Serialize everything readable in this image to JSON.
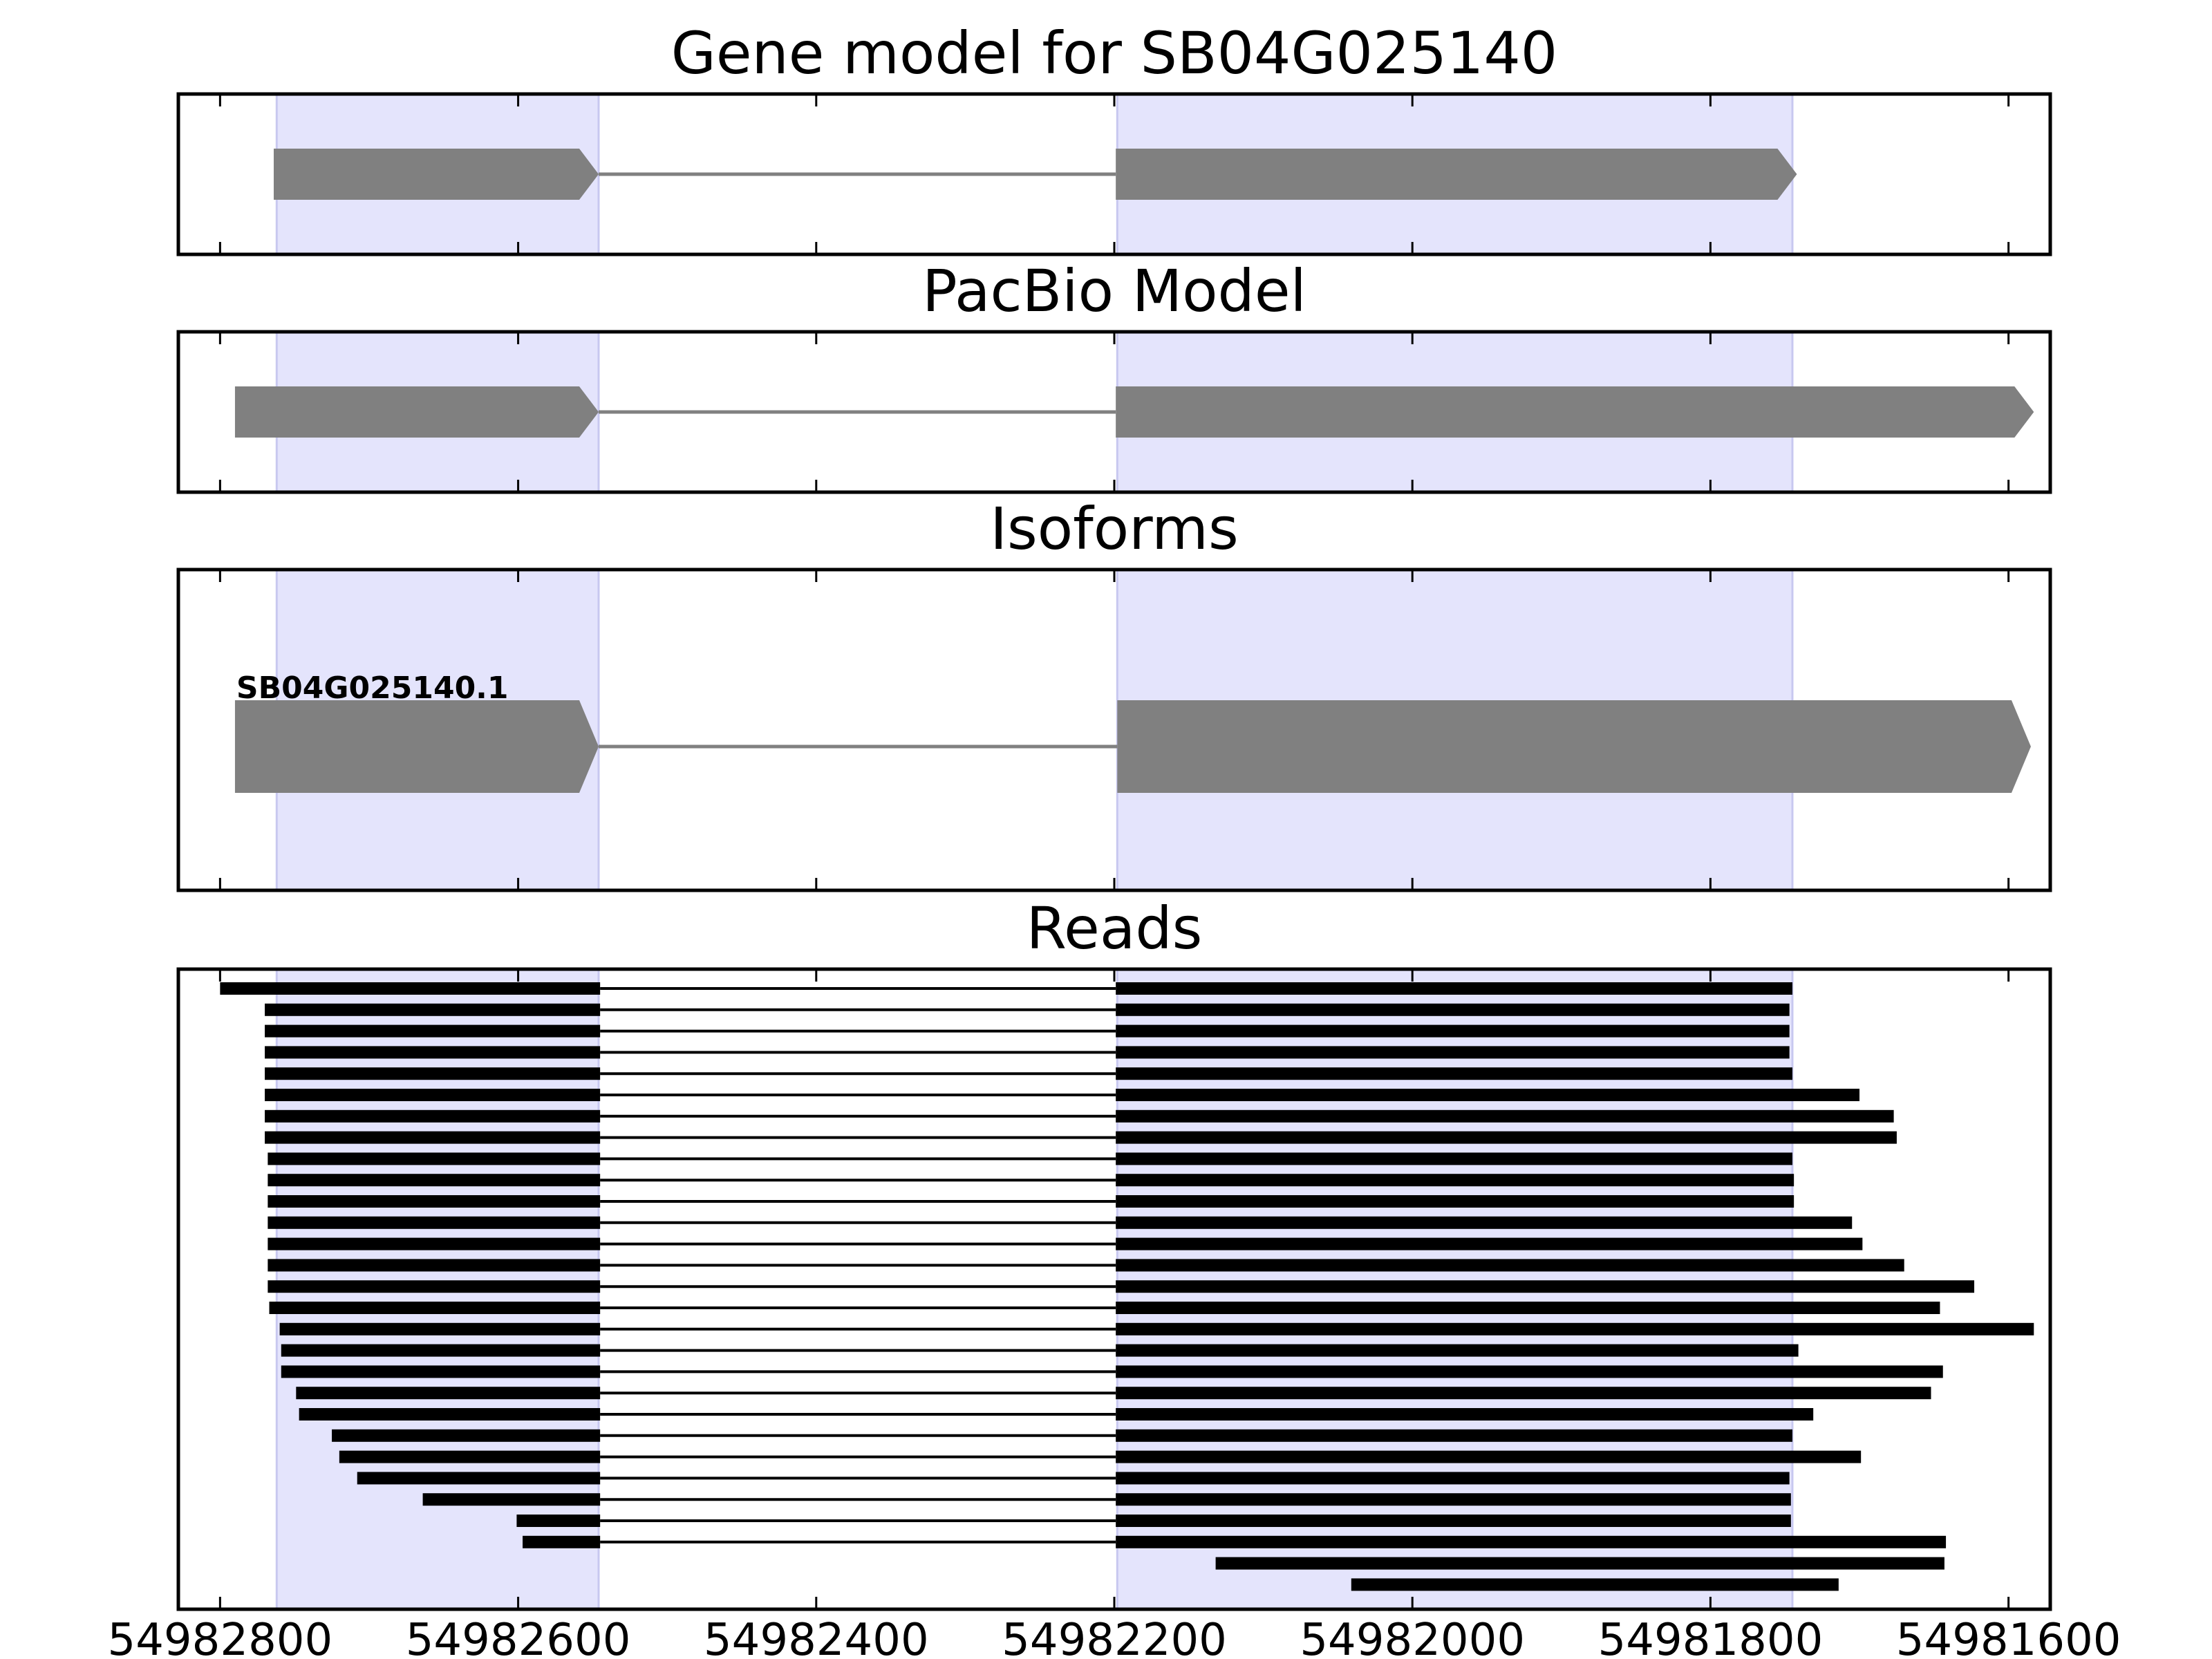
{
  "chart_data": {
    "type": "gene-track",
    "x_axis": {
      "xlim": [
        54982828,
        54981572
      ],
      "ticks": [
        54982800,
        54982600,
        54982400,
        54982200,
        54982000,
        54981800,
        54981600
      ],
      "tick_labels": [
        "54982800",
        "54982600",
        "54982400",
        "54982200",
        "54982000",
        "54981800",
        "54981600"
      ]
    },
    "highlight_color": "#e4e4fc",
    "exon_color": "#808080",
    "highlight_regions": [
      {
        "start": 54982762,
        "end": 54982546
      },
      {
        "start": 54982198,
        "end": 54981745
      }
    ],
    "panels": [
      {
        "title": "Gene model for SB04G025140",
        "features": [
          {
            "exons": [
              [
                54982764,
                54982546
              ],
              [
                54982199,
                54981742
              ]
            ]
          }
        ]
      },
      {
        "title": "PacBio Model",
        "features": [
          {
            "exons": [
              [
                54982790,
                54982546
              ],
              [
                54982199,
                54981583
              ]
            ]
          }
        ]
      },
      {
        "title": "Isoforms",
        "features": [
          {
            "label": "SB04G025140.1",
            "exons": [
              [
                54982790,
                54982546
              ],
              [
                54982198,
                54981585
              ]
            ]
          }
        ]
      },
      {
        "title": "Reads",
        "reads": [
          [
            [
              54982800,
              54982545
            ],
            [
              54982199,
              54981745
            ]
          ],
          [
            [
              54982770,
              54982545
            ],
            [
              54982199,
              54981747
            ]
          ],
          [
            [
              54982770,
              54982545
            ],
            [
              54982199,
              54981747
            ]
          ],
          [
            [
              54982770,
              54982545
            ],
            [
              54982199,
              54981747
            ]
          ],
          [
            [
              54982770,
              54982545
            ],
            [
              54982199,
              54981745
            ]
          ],
          [
            [
              54982770,
              54982545
            ],
            [
              54982199,
              54981700
            ]
          ],
          [
            [
              54982770,
              54982545
            ],
            [
              54982199,
              54981677
            ]
          ],
          [
            [
              54982770,
              54982545
            ],
            [
              54982199,
              54981675
            ]
          ],
          [
            [
              54982768,
              54982545
            ],
            [
              54982199,
              54981745
            ]
          ],
          [
            [
              54982768,
              54982545
            ],
            [
              54982199,
              54981744
            ]
          ],
          [
            [
              54982768,
              54982545
            ],
            [
              54982199,
              54981744
            ]
          ],
          [
            [
              54982768,
              54982545
            ],
            [
              54982199,
              54981705
            ]
          ],
          [
            [
              54982768,
              54982545
            ],
            [
              54982199,
              54981698
            ]
          ],
          [
            [
              54982768,
              54982545
            ],
            [
              54982199,
              54981670
            ]
          ],
          [
            [
              54982768,
              54982545
            ],
            [
              54982199,
              54981623
            ]
          ],
          [
            [
              54982767,
              54982545
            ],
            [
              54982199,
              54981646
            ]
          ],
          [
            [
              54982760,
              54982545
            ],
            [
              54982199,
              54981583
            ]
          ],
          [
            [
              54982759,
              54982545
            ],
            [
              54982199,
              54981741
            ]
          ],
          [
            [
              54982759,
              54982545
            ],
            [
              54982199,
              54981644
            ]
          ],
          [
            [
              54982749,
              54982545
            ],
            [
              54982199,
              54981652
            ]
          ],
          [
            [
              54982747,
              54982545
            ],
            [
              54982199,
              54981731
            ]
          ],
          [
            [
              54982725,
              54982545
            ],
            [
              54982199,
              54981745
            ]
          ],
          [
            [
              54982720,
              54982545
            ],
            [
              54982199,
              54981699
            ]
          ],
          [
            [
              54982708,
              54982545
            ],
            [
              54982199,
              54981747
            ]
          ],
          [
            [
              54982664,
              54982545
            ],
            [
              54982199,
              54981746
            ]
          ],
          [
            [
              54982601,
              54982545
            ],
            [
              54982199,
              54981746
            ]
          ],
          [
            [
              54982597,
              54982545
            ],
            [
              54982199,
              54981642
            ]
          ],
          [
            [
              54982132,
              54981643
            ]
          ],
          [
            [
              54982041,
              54981714
            ]
          ]
        ]
      }
    ]
  }
}
